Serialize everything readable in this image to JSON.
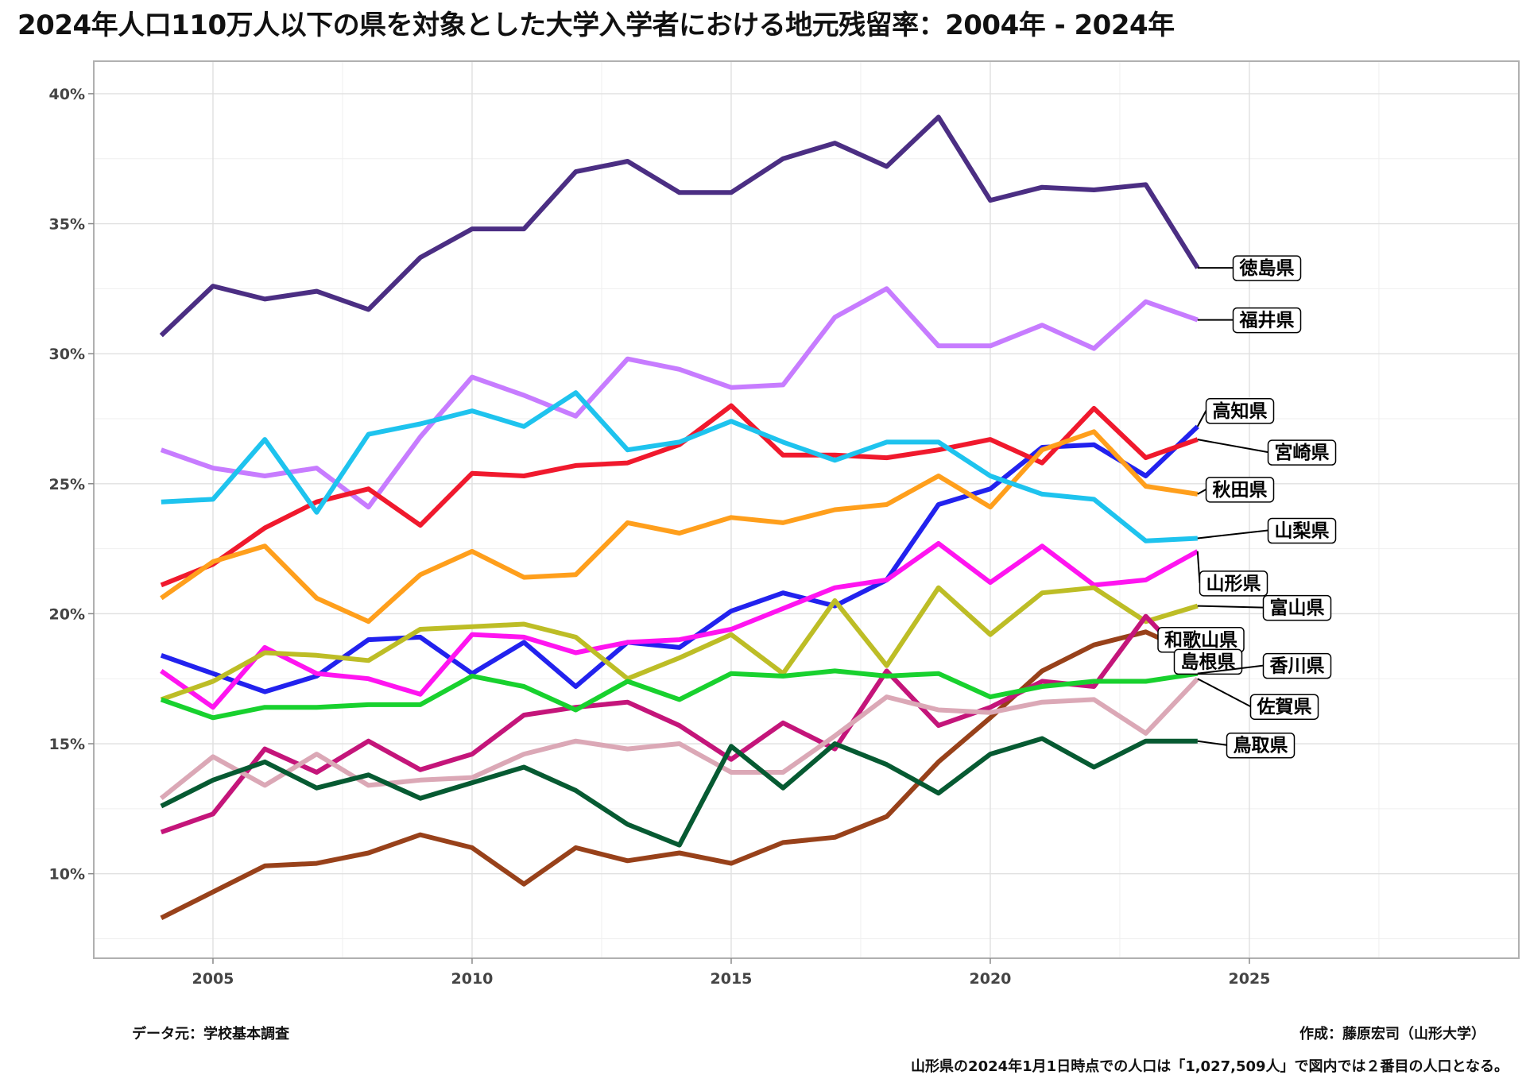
{
  "title": "2024年人口110万人以下の県を対象とした大学入学者における地元残留率：2004年 - 2024年",
  "footer": {
    "source": "データ元：学校基本調査",
    "author": "作成：藤原宏司（山形大学）",
    "note": "山形県の2024年1月1日時点での人口は「1,027,509人」で図内では２番目の人口となる。"
  },
  "chart_data": {
    "type": "line",
    "title": "2024年人口110万人以下の県を対象とした大学入学者における地元残留率：2004年 - 2024年",
    "xlabel": "",
    "ylabel": "",
    "xlim": [
      2002.7,
      2030.2
    ],
    "ylim": [
      0.0675,
      0.4125
    ],
    "x_ticks": [
      2005,
      2010,
      2015,
      2020,
      2025
    ],
    "x_tick_labels": [
      "2005",
      "2010",
      "2015",
      "2020",
      "2025"
    ],
    "y_ticks": [
      0.1,
      0.15,
      0.2,
      0.25,
      0.3,
      0.35,
      0.4
    ],
    "y_tick_labels": [
      "10%",
      "15%",
      "20%",
      "25%",
      "30%",
      "35%",
      "40%"
    ],
    "grid": true,
    "legend": "direct labels at right end of lines",
    "x": [
      2004,
      2005,
      2006,
      2007,
      2008,
      2009,
      2010,
      2011,
      2012,
      2013,
      2014,
      2015,
      2016,
      2017,
      2018,
      2019,
      2020,
      2021,
      2022,
      2023,
      2024
    ],
    "series": [
      {
        "name": "徳島県",
        "color": "#4b2e83",
        "values": [
          0.307,
          0.326,
          0.321,
          0.324,
          0.317,
          0.337,
          0.348,
          0.348,
          0.37,
          0.374,
          0.362,
          0.362,
          0.375,
          0.381,
          0.372,
          0.391,
          0.359,
          0.364,
          0.363,
          0.365,
          0.333
        ]
      },
      {
        "name": "福井県",
        "color": "#c77cff",
        "values": [
          0.263,
          0.256,
          0.253,
          0.256,
          0.241,
          0.268,
          0.291,
          0.284,
          0.276,
          0.298,
          0.294,
          0.287,
          0.288,
          0.314,
          0.325,
          0.303,
          0.303,
          0.311,
          0.302,
          0.32,
          0.313
        ]
      },
      {
        "name": "高知県",
        "color": "#2222ee",
        "values": [
          0.184,
          0.177,
          0.17,
          0.176,
          0.19,
          0.191,
          0.177,
          0.189,
          0.172,
          0.189,
          0.187,
          0.201,
          0.208,
          0.203,
          0.213,
          0.242,
          0.248,
          0.264,
          0.265,
          0.253,
          0.272
        ]
      },
      {
        "name": "宮崎県",
        "color": "#f0192d",
        "values": [
          0.211,
          0.219,
          0.233,
          0.243,
          0.248,
          0.234,
          0.254,
          0.253,
          0.257,
          0.258,
          0.265,
          0.28,
          0.261,
          0.261,
          0.26,
          0.263,
          0.267,
          0.258,
          0.279,
          0.26,
          0.267
        ]
      },
      {
        "name": "秋田県",
        "color": "#ff9f1c",
        "values": [
          0.206,
          0.22,
          0.226,
          0.206,
          0.197,
          0.215,
          0.224,
          0.214,
          0.215,
          0.235,
          0.231,
          0.237,
          0.235,
          0.24,
          0.242,
          0.253,
          0.241,
          0.263,
          0.27,
          0.249,
          0.246
        ]
      },
      {
        "name": "山梨県",
        "color": "#1ec3ee",
        "values": [
          0.243,
          0.244,
          0.267,
          0.239,
          0.269,
          0.273,
          0.278,
          0.272,
          0.285,
          0.263,
          0.266,
          0.274,
          0.266,
          0.259,
          0.266,
          0.266,
          0.253,
          0.246,
          0.244,
          0.228,
          0.229
        ]
      },
      {
        "name": "山形県",
        "color": "#ff14f0",
        "values": [
          0.178,
          0.164,
          0.187,
          0.177,
          0.175,
          0.169,
          0.192,
          0.191,
          0.185,
          0.189,
          0.19,
          0.194,
          0.202,
          0.21,
          0.213,
          0.227,
          0.212,
          0.226,
          0.211,
          0.213,
          0.224
        ]
      },
      {
        "name": "富山県",
        "color": "#bdbd26",
        "values": [
          0.167,
          0.174,
          0.185,
          0.184,
          0.182,
          0.194,
          0.195,
          0.196,
          0.191,
          0.175,
          0.183,
          0.192,
          0.177,
          0.205,
          0.18,
          0.21,
          0.192,
          0.208,
          0.21,
          0.197,
          0.203
        ]
      },
      {
        "name": "和歌山県",
        "color": "#98411a",
        "values": [
          0.083,
          0.093,
          0.103,
          0.104,
          0.108,
          0.115,
          0.11,
          0.096,
          0.11,
          0.105,
          0.108,
          0.104,
          0.112,
          0.114,
          0.122,
          0.143,
          0.16,
          0.178,
          0.188,
          0.193,
          0.184
        ]
      },
      {
        "name": "島根県",
        "color": "#c4157a",
        "values": [
          0.116,
          0.123,
          0.148,
          0.139,
          0.151,
          0.14,
          0.146,
          0.161,
          0.164,
          0.166,
          0.157,
          0.144,
          0.158,
          0.148,
          0.178,
          0.157,
          0.164,
          0.174,
          0.172,
          0.199,
          0.178
        ]
      },
      {
        "name": "香川県",
        "color": "#18d12e",
        "values": [
          0.167,
          0.16,
          0.164,
          0.164,
          0.165,
          0.165,
          0.176,
          0.172,
          0.163,
          0.174,
          0.167,
          0.177,
          0.176,
          0.178,
          0.176,
          0.177,
          0.168,
          0.172,
          0.174,
          0.174,
          0.177
        ]
      },
      {
        "name": "佐賀県",
        "color": "#dba8b6",
        "values": [
          0.129,
          0.145,
          0.134,
          0.146,
          0.134,
          0.136,
          0.137,
          0.146,
          0.151,
          0.148,
          0.15,
          0.139,
          0.139,
          0.153,
          0.168,
          0.163,
          0.162,
          0.166,
          0.167,
          0.154,
          0.175
        ]
      },
      {
        "name": "鳥取県",
        "color": "#065a32",
        "values": [
          0.126,
          0.136,
          0.143,
          0.133,
          0.138,
          0.129,
          0.135,
          0.141,
          0.132,
          0.119,
          0.111,
          0.149,
          0.133,
          0.15,
          0.142,
          0.131,
          0.146,
          0.152,
          0.141,
          0.151,
          0.151
        ]
      }
    ]
  }
}
